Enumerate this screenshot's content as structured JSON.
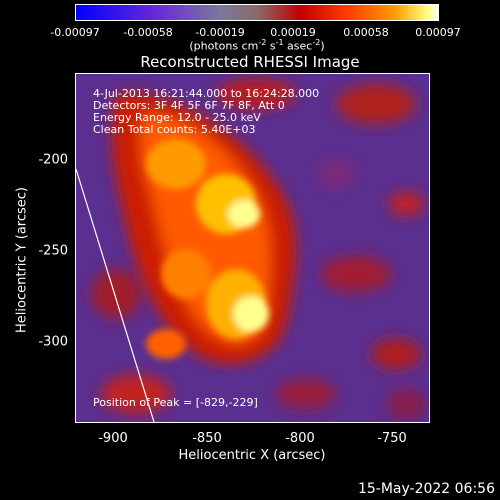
{
  "colorbar": {
    "ticks": [
      "-0.00097",
      "-0.00058",
      "-0.00019",
      "0.00019",
      "0.00058",
      "0.00097"
    ],
    "units_prefix": "(photons cm",
    "units_exp1": "-2",
    "units_mid": " s",
    "units_exp2": "-1",
    "units_mid2": " asec",
    "units_exp3": "-2",
    "units_suffix": ")"
  },
  "title": "Reconstructed RHESSI Image",
  "info": {
    "line1": "4-Jul-2013 16:21:44.000 to 16:24:28.000",
    "line2": "Detectors: 3F 4F 5F 6F 7F 8F, Att 0",
    "line3": "Energy Range: 12.0 - 25.0 keV",
    "line4": "Clean    Total counts: 5.40E+03",
    "peak": "Position of Peak = [-829,-229]"
  },
  "axes": {
    "xlabel": "Heliocentric X (arcsec)",
    "ylabel": "Heliocentric Y (arcsec)",
    "xticks": [
      "-900",
      "-850",
      "-800",
      "-750"
    ],
    "yticks": [
      "-200",
      "-250",
      "-300"
    ]
  },
  "timestamp": "15-May-2022 06:56",
  "colors": {
    "background": "#000000",
    "foreground": "#ffffff",
    "map_background": "#5a2f8f"
  }
}
